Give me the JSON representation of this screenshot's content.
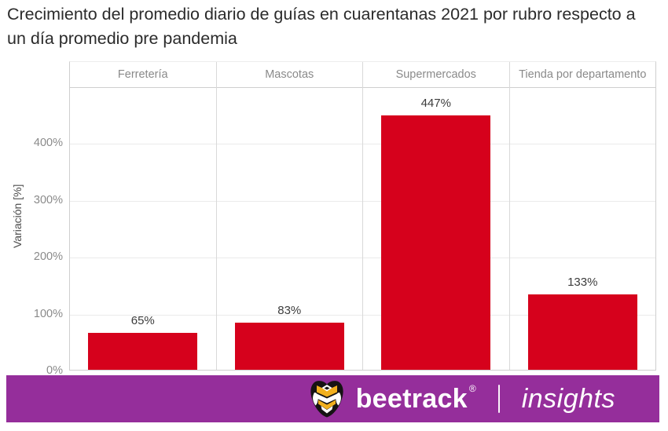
{
  "title": "Crecimiento del promedio diario de guías en cuarentanas 2021 por rubro respecto a un día promedio pre pandemia",
  "chart_data": {
    "type": "bar",
    "title": "Crecimiento del promedio diario de guías en cuarentanas 2021 por rubro respecto a un día promedio pre pandemia",
    "categories": [
      "Ferretería",
      "Mascotas",
      "Supermercados",
      "Tienda por departamento"
    ],
    "values": [
      65,
      83,
      447,
      133
    ],
    "value_labels": [
      "65%",
      "83%",
      "447%",
      "133%"
    ],
    "xlabel": "",
    "ylabel": "Variación [%]",
    "ylim": [
      0,
      500
    ],
    "yticks": [
      0,
      100,
      200,
      300,
      400
    ],
    "ytick_labels": [
      "0%",
      "100%",
      "200%",
      "300%",
      "400%"
    ],
    "grid": true,
    "legend": "none",
    "bar_color": "#d6011c"
  },
  "footer": {
    "brand": "beetrack",
    "registered_mark": "®",
    "divider": "|",
    "product": "insights",
    "background_color": "#952e9b",
    "logo_icon": "bee-icon",
    "logo_colors": {
      "yellow": "#f2b01e",
      "black": "#161314",
      "white": "#ffffff"
    }
  },
  "colors": {
    "bar": "#d6011c",
    "title_text": "#2b2b2b",
    "axis_text": "#8a8a8a",
    "axis_title_text": "#4e4e4e",
    "value_label_text": "#3c3c3c",
    "border": "#cfcfcf",
    "gridline": "#ebebeb"
  }
}
